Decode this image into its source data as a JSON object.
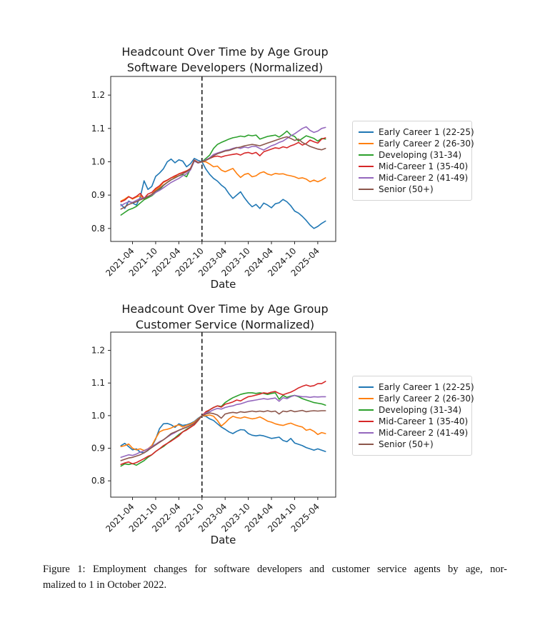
{
  "figure": {
    "caption_lines": [
      "Figure 1: Employment changes for software developers and customer service agents by age, nor-",
      "malized to 1 in October 2022."
    ]
  },
  "colors": {
    "blue": "#1f77b4",
    "orange": "#ff7f0e",
    "green": "#2ca02c",
    "red": "#d62728",
    "purple": "#9467bd",
    "brown": "#8c564b",
    "axis": "#262626",
    "vline": "#000000"
  },
  "chart_data": [
    {
      "type": "line",
      "title_lines": [
        "Headcount Over Time by Age Group",
        "Software Developers (Normalized)"
      ],
      "xlabel": "Date",
      "ylabel": "",
      "yticks": [
        0.8,
        0.9,
        1.0,
        1.1,
        1.2
      ],
      "ylim": [
        0.761,
        1.256
      ],
      "x_tick_labels": [
        "2021-04",
        "2021-10",
        "2022-04",
        "2022-10",
        "2023-04",
        "2023-10",
        "2024-04",
        "2024-10",
        "2025-04"
      ],
      "vline_x": "2022-10",
      "grid": false,
      "legend_position": "right",
      "x_months": [
        "2021-01",
        "2021-02",
        "2021-03",
        "2021-04",
        "2021-05",
        "2021-06",
        "2021-07",
        "2021-08",
        "2021-09",
        "2021-10",
        "2021-11",
        "2021-12",
        "2022-01",
        "2022-02",
        "2022-03",
        "2022-04",
        "2022-05",
        "2022-06",
        "2022-07",
        "2022-08",
        "2022-09",
        "2022-10",
        "2022-11",
        "2022-12",
        "2023-01",
        "2023-02",
        "2023-03",
        "2023-04",
        "2023-05",
        "2023-06",
        "2023-07",
        "2023-08",
        "2023-09",
        "2023-10",
        "2023-11",
        "2023-12",
        "2024-01",
        "2024-02",
        "2024-03",
        "2024-04",
        "2024-05",
        "2024-06",
        "2024-07",
        "2024-08",
        "2024-09",
        "2024-10",
        "2024-11",
        "2024-12",
        "2025-01",
        "2025-02",
        "2025-03",
        "2025-04",
        "2025-05",
        "2025-06"
      ],
      "series": [
        {
          "name": "Early Career 1 (22-25)",
          "color": "#1f77b4",
          "values": [
            0.872,
            0.86,
            0.882,
            0.876,
            0.87,
            0.893,
            0.943,
            0.917,
            0.926,
            0.956,
            0.966,
            0.979,
            1.0,
            1.008,
            0.997,
            1.006,
            1.002,
            0.985,
            0.994,
            1.01,
            1.004,
            1.0,
            0.978,
            0.962,
            0.95,
            0.942,
            0.93,
            0.921,
            0.904,
            0.89,
            0.9,
            0.91,
            0.892,
            0.877,
            0.865,
            0.872,
            0.86,
            0.876,
            0.87,
            0.862,
            0.874,
            0.877,
            0.887,
            0.88,
            0.868,
            0.852,
            0.846,
            0.836,
            0.824,
            0.81,
            0.8,
            0.806,
            0.815,
            0.822
          ]
        },
        {
          "name": "Early Career 2 (26-30)",
          "color": "#ff7f0e",
          "values": [
            0.882,
            0.888,
            0.896,
            0.888,
            0.894,
            0.898,
            0.888,
            0.894,
            0.902,
            0.916,
            0.924,
            0.938,
            0.944,
            0.952,
            0.955,
            0.964,
            0.968,
            0.973,
            0.978,
            1.004,
            0.998,
            1.0,
            1.0,
            0.993,
            0.985,
            0.987,
            0.975,
            0.97,
            0.975,
            0.98,
            0.965,
            0.953,
            0.962,
            0.965,
            0.955,
            0.958,
            0.966,
            0.97,
            0.963,
            0.96,
            0.965,
            0.963,
            0.964,
            0.96,
            0.958,
            0.955,
            0.95,
            0.952,
            0.948,
            0.94,
            0.945,
            0.94,
            0.945,
            0.952
          ]
        },
        {
          "name": "Developing (31-34)",
          "color": "#2ca02c",
          "values": [
            0.84,
            0.848,
            0.856,
            0.86,
            0.866,
            0.876,
            0.886,
            0.892,
            0.898,
            0.908,
            0.916,
            0.929,
            0.938,
            0.946,
            0.952,
            0.958,
            0.962,
            0.955,
            0.978,
            1.004,
            0.997,
            1.0,
            1.01,
            1.02,
            1.04,
            1.052,
            1.058,
            1.063,
            1.068,
            1.072,
            1.074,
            1.077,
            1.075,
            1.08,
            1.078,
            1.08,
            1.068,
            1.072,
            1.076,
            1.078,
            1.08,
            1.074,
            1.082,
            1.092,
            1.08,
            1.076,
            1.062,
            1.07,
            1.078,
            1.074,
            1.07,
            1.062,
            1.07,
            1.068
          ]
        },
        {
          "name": "Mid-Career 1 (35-40)",
          "color": "#d62728",
          "values": [
            0.88,
            0.885,
            0.895,
            0.89,
            0.896,
            0.905,
            0.89,
            0.903,
            0.908,
            0.92,
            0.928,
            0.94,
            0.945,
            0.952,
            0.958,
            0.963,
            0.968,
            0.972,
            0.98,
            1.005,
            0.998,
            1.0,
            1.005,
            1.01,
            1.015,
            1.017,
            1.014,
            1.018,
            1.02,
            1.022,
            1.024,
            1.02,
            1.026,
            1.028,
            1.024,
            1.028,
            1.018,
            1.03,
            1.034,
            1.038,
            1.042,
            1.04,
            1.045,
            1.042,
            1.048,
            1.052,
            1.058,
            1.05,
            1.055,
            1.065,
            1.06,
            1.056,
            1.068,
            1.072
          ]
        },
        {
          "name": "Mid-Career 2 (41-49)",
          "color": "#9467bd",
          "values": [
            0.868,
            0.875,
            0.88,
            0.878,
            0.884,
            0.89,
            0.892,
            0.896,
            0.9,
            0.908,
            0.914,
            0.922,
            0.93,
            0.938,
            0.944,
            0.95,
            0.958,
            0.964,
            0.975,
            1.002,
            0.996,
            1.0,
            1.006,
            1.012,
            1.022,
            1.026,
            1.03,
            1.034,
            1.036,
            1.04,
            1.043,
            1.04,
            1.044,
            1.042,
            1.046,
            1.046,
            1.04,
            1.035,
            1.042,
            1.048,
            1.052,
            1.058,
            1.062,
            1.07,
            1.078,
            1.084,
            1.092,
            1.1,
            1.105,
            1.094,
            1.088,
            1.092,
            1.1,
            1.103
          ]
        },
        {
          "name": "Senior (50+)",
          "color": "#8c564b",
          "values": [
            0.858,
            0.864,
            0.872,
            0.876,
            0.88,
            0.886,
            0.89,
            0.896,
            0.902,
            0.912,
            0.92,
            0.93,
            0.938,
            0.946,
            0.952,
            0.958,
            0.964,
            0.97,
            0.978,
            1.004,
            0.997,
            1.0,
            1.004,
            1.01,
            1.018,
            1.024,
            1.028,
            1.032,
            1.034,
            1.038,
            1.042,
            1.044,
            1.048,
            1.05,
            1.052,
            1.05,
            1.048,
            1.052,
            1.056,
            1.06,
            1.064,
            1.068,
            1.072,
            1.075,
            1.07,
            1.064,
            1.068,
            1.058,
            1.052,
            1.046,
            1.042,
            1.038,
            1.036,
            1.04
          ]
        }
      ]
    },
    {
      "type": "line",
      "title_lines": [
        "Headcount Over Time by Age Group",
        "Customer Service (Normalized)"
      ],
      "xlabel": "Date",
      "ylabel": "",
      "yticks": [
        0.8,
        0.9,
        1.0,
        1.1,
        1.2
      ],
      "ylim": [
        0.75,
        1.256
      ],
      "x_tick_labels": [
        "2021-04",
        "2021-10",
        "2022-04",
        "2022-10",
        "2023-04",
        "2023-10",
        "2024-04",
        "2024-10",
        "2025-04"
      ],
      "vline_x": "2022-10",
      "grid": false,
      "legend_position": "right",
      "x_months": [
        "2021-01",
        "2021-02",
        "2021-03",
        "2021-04",
        "2021-05",
        "2021-06",
        "2021-07",
        "2021-08",
        "2021-09",
        "2021-10",
        "2021-11",
        "2021-12",
        "2022-01",
        "2022-02",
        "2022-03",
        "2022-04",
        "2022-05",
        "2022-06",
        "2022-07",
        "2022-08",
        "2022-09",
        "2022-10",
        "2022-11",
        "2022-12",
        "2023-01",
        "2023-02",
        "2023-03",
        "2023-04",
        "2023-05",
        "2023-06",
        "2023-07",
        "2023-08",
        "2023-09",
        "2023-10",
        "2023-11",
        "2023-12",
        "2024-01",
        "2024-02",
        "2024-03",
        "2024-04",
        "2024-05",
        "2024-06",
        "2024-07",
        "2024-08",
        "2024-09",
        "2024-10",
        "2024-11",
        "2024-12",
        "2025-01",
        "2025-02",
        "2025-03",
        "2025-04",
        "2025-05",
        "2025-06"
      ],
      "series": [
        {
          "name": "Early Career 1 (22-25)",
          "color": "#1f77b4",
          "values": [
            0.908,
            0.915,
            0.905,
            0.895,
            0.898,
            0.888,
            0.886,
            0.893,
            0.905,
            0.928,
            0.96,
            0.975,
            0.976,
            0.972,
            0.964,
            0.975,
            0.97,
            0.972,
            0.976,
            0.982,
            0.992,
            1.0,
            0.998,
            0.99,
            0.985,
            0.975,
            0.965,
            0.958,
            0.95,
            0.945,
            0.952,
            0.957,
            0.956,
            0.945,
            0.94,
            0.938,
            0.94,
            0.938,
            0.934,
            0.93,
            0.932,
            0.934,
            0.924,
            0.92,
            0.93,
            0.916,
            0.912,
            0.908,
            0.902,
            0.898,
            0.894,
            0.898,
            0.894,
            0.89
          ]
        },
        {
          "name": "Early Career 2 (26-30)",
          "color": "#ff7f0e",
          "values": [
            0.905,
            0.908,
            0.913,
            0.9,
            0.895,
            0.898,
            0.893,
            0.898,
            0.908,
            0.93,
            0.95,
            0.956,
            0.958,
            0.962,
            0.968,
            0.972,
            0.965,
            0.97,
            0.974,
            0.98,
            0.99,
            1.0,
            1.0,
            1.002,
            0.998,
            0.985,
            0.968,
            0.978,
            0.99,
            0.998,
            0.994,
            0.992,
            0.996,
            0.993,
            0.99,
            0.992,
            0.996,
            0.99,
            0.983,
            0.98,
            0.975,
            0.972,
            0.97,
            0.974,
            0.977,
            0.972,
            0.968,
            0.965,
            0.955,
            0.958,
            0.952,
            0.942,
            0.948,
            0.945
          ]
        },
        {
          "name": "Developing (31-34)",
          "color": "#2ca02c",
          "values": [
            0.845,
            0.852,
            0.85,
            0.853,
            0.848,
            0.855,
            0.862,
            0.872,
            0.88,
            0.89,
            0.898,
            0.905,
            0.915,
            0.924,
            0.932,
            0.942,
            0.95,
            0.958,
            0.965,
            0.972,
            0.985,
            1.0,
            1.008,
            1.018,
            1.025,
            1.03,
            1.028,
            1.04,
            1.048,
            1.055,
            1.06,
            1.065,
            1.068,
            1.07,
            1.07,
            1.068,
            1.07,
            1.068,
            1.065,
            1.068,
            1.07,
            1.05,
            1.062,
            1.056,
            1.06,
            1.062,
            1.058,
            1.052,
            1.048,
            1.044,
            1.04,
            1.038,
            1.036,
            1.032
          ]
        },
        {
          "name": "Mid-Career 1 (35-40)",
          "color": "#d62728",
          "values": [
            0.85,
            0.855,
            0.858,
            0.852,
            0.856,
            0.862,
            0.868,
            0.875,
            0.88,
            0.89,
            0.898,
            0.908,
            0.915,
            0.922,
            0.93,
            0.938,
            0.95,
            0.956,
            0.964,
            0.972,
            0.986,
            1.0,
            1.012,
            1.018,
            1.025,
            1.03,
            1.026,
            1.035,
            1.038,
            1.042,
            1.048,
            1.045,
            1.052,
            1.058,
            1.06,
            1.063,
            1.066,
            1.07,
            1.068,
            1.072,
            1.074,
            1.068,
            1.064,
            1.068,
            1.072,
            1.078,
            1.085,
            1.09,
            1.094,
            1.09,
            1.092,
            1.098,
            1.098,
            1.105
          ]
        },
        {
          "name": "Mid-Career 2 (41-49)",
          "color": "#9467bd",
          "values": [
            0.872,
            0.876,
            0.88,
            0.878,
            0.882,
            0.888,
            0.892,
            0.898,
            0.905,
            0.912,
            0.92,
            0.926,
            0.934,
            0.942,
            0.948,
            0.955,
            0.96,
            0.965,
            0.97,
            0.976,
            0.988,
            1.0,
            1.008,
            1.012,
            1.018,
            1.022,
            1.02,
            1.025,
            1.028,
            1.03,
            1.034,
            1.036,
            1.04,
            1.044,
            1.046,
            1.048,
            1.05,
            1.052,
            1.05,
            1.052,
            1.054,
            1.044,
            1.055,
            1.052,
            1.058,
            1.062,
            1.06,
            1.058,
            1.058,
            1.056,
            1.058,
            1.057,
            1.058,
            1.058
          ]
        },
        {
          "name": "Senior (50+)",
          "color": "#8c564b",
          "values": [
            0.862,
            0.866,
            0.87,
            0.872,
            0.876,
            0.88,
            0.886,
            0.894,
            0.902,
            0.91,
            0.918,
            0.926,
            0.935,
            0.945,
            0.95,
            0.955,
            0.96,
            0.964,
            0.97,
            0.976,
            0.988,
            1.0,
            1.005,
            1.008,
            1.006,
            1.002,
            0.992,
            1.005,
            1.008,
            1.01,
            1.008,
            1.012,
            1.01,
            1.012,
            1.014,
            1.012,
            1.014,
            1.012,
            1.015,
            1.012,
            1.014,
            1.005,
            1.014,
            1.012,
            1.016,
            1.012,
            1.014,
            1.016,
            1.012,
            1.014,
            1.015,
            1.014,
            1.015,
            1.015
          ]
        }
      ]
    }
  ]
}
